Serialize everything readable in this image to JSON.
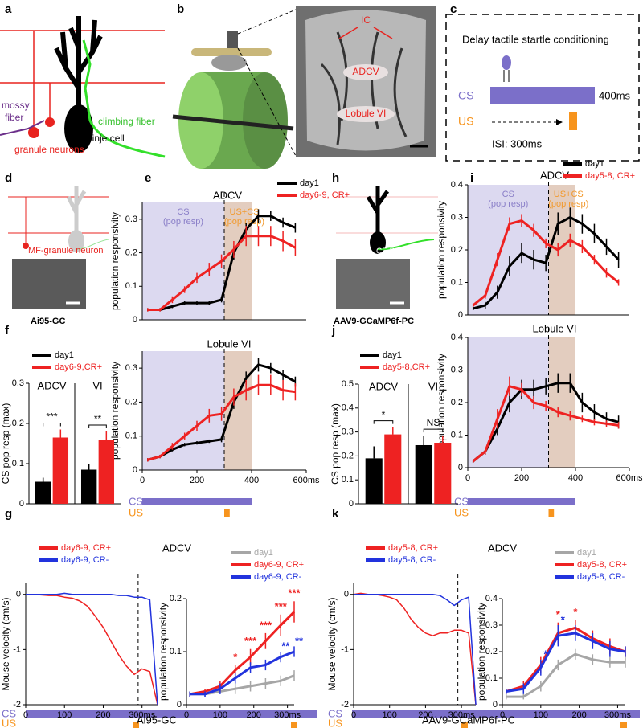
{
  "panel_labels": [
    "a",
    "b",
    "c",
    "d",
    "e",
    "f",
    "g",
    "h",
    "i",
    "j",
    "k"
  ],
  "diagram_a": {
    "mossy_fiber": [
      "mossy",
      "fiber"
    ],
    "granule_neurons": "granule neurons",
    "purkinje_cell": "Purkinje cell",
    "climbing_fiber": "climbing fiber"
  },
  "diagram_b": {
    "labels": [
      "IC",
      "ADCV",
      "Lobule VI"
    ]
  },
  "diagram_c": {
    "title": "Delay tactile startle conditioning",
    "cs_duration": "400ms",
    "isi": "ISI: 300ms"
  },
  "diagram_d": {
    "label": "MF-granule neuron",
    "caption": "Ai95-GC"
  },
  "diagram_h": {
    "label": "CF-PC",
    "caption": "AAV9-GCaMP6f-PC"
  },
  "timeline": {
    "cs": "CS",
    "us": "US"
  },
  "captions": {
    "g": "Ai95-GC",
    "k": "AAV9-GCaMP6f-PC"
  },
  "chart_data": [
    {
      "type": "line",
      "title": "ADCV",
      "y_label": "population responsivity",
      "x": [
        20,
        65,
        110,
        155,
        200,
        245,
        290,
        335,
        380,
        425,
        470,
        515,
        560
      ],
      "xlim": [
        0,
        600
      ],
      "ylim": [
        0,
        0.35
      ],
      "yticks": [
        0,
        0.1,
        0.2,
        0.3
      ],
      "vline": 300,
      "regions": [
        {
          "span": [
            0,
            300
          ],
          "color": "#dcd9f0",
          "label": [
            "CS",
            "(pop resp)"
          ],
          "label_color": "#8a7fc8"
        },
        {
          "span": [
            300,
            400
          ],
          "color": "#e3cdbf",
          "label": [
            "US+CS",
            "(pop resp)"
          ],
          "label_color": "#f29a2e"
        }
      ],
      "legend": "above-right",
      "series": [
        {
          "name": "day1",
          "color": "#000000",
          "values": [
            0.03,
            0.03,
            0.04,
            0.05,
            0.05,
            0.05,
            0.06,
            0.2,
            0.27,
            0.31,
            0.31,
            0.29,
            0.275
          ],
          "errors": [
            0.005,
            0.005,
            0.005,
            0.005,
            0.005,
            0.005,
            0.008,
            0.02,
            0.02,
            0.02,
            0.015,
            0.015,
            0.015
          ]
        },
        {
          "name": "day6-9, CR+",
          "color": "#ee2222",
          "values": [
            0.03,
            0.03,
            0.06,
            0.09,
            0.125,
            0.15,
            0.175,
            0.21,
            0.25,
            0.25,
            0.25,
            0.235,
            0.215
          ],
          "errors": [
            0.005,
            0.005,
            0.01,
            0.01,
            0.015,
            0.02,
            0.02,
            0.025,
            0.03,
            0.03,
            0.03,
            0.03,
            0.025
          ]
        }
      ]
    },
    {
      "type": "line",
      "title": "Lobule VI",
      "y_label": "population responsivity",
      "x": [
        20,
        65,
        110,
        155,
        200,
        245,
        290,
        335,
        380,
        425,
        470,
        515,
        560
      ],
      "xlim": [
        0,
        600
      ],
      "ylim": [
        0,
        0.35
      ],
      "yticks": [
        0,
        0.1,
        0.2,
        0.3
      ],
      "xticks": [
        0,
        200,
        400,
        {
          "value": 600,
          "label": "600ms"
        }
      ],
      "vline": 300,
      "regions": [
        {
          "span": [
            0,
            300
          ],
          "color": "#dcd9f0"
        },
        {
          "span": [
            300,
            400
          ],
          "color": "#e3cdbf"
        }
      ],
      "cs_span": [
        0,
        400
      ],
      "us_span": [
        300,
        320
      ],
      "cs_color": "#7b6fc9",
      "us_color": "#f7941d",
      "series": [
        {
          "color": "#000000",
          "values": [
            0.03,
            0.04,
            0.06,
            0.075,
            0.08,
            0.085,
            0.09,
            0.2,
            0.27,
            0.31,
            0.3,
            0.28,
            0.26
          ],
          "errors": [
            0.005,
            0.005,
            0.005,
            0.005,
            0.005,
            0.005,
            0.008,
            0.02,
            0.02,
            0.02,
            0.015,
            0.015,
            0.015
          ]
        },
        {
          "color": "#ee2222",
          "values": [
            0.03,
            0.04,
            0.07,
            0.1,
            0.13,
            0.16,
            0.165,
            0.215,
            0.235,
            0.25,
            0.25,
            0.235,
            0.23
          ],
          "errors": [
            0.005,
            0.005,
            0.01,
            0.01,
            0.015,
            0.02,
            0.02,
            0.025,
            0.03,
            0.03,
            0.03,
            0.03,
            0.025
          ]
        }
      ]
    },
    {
      "type": "line",
      "title": "ADCV",
      "y_label": "population responsivity",
      "x": [
        20,
        65,
        110,
        155,
        200,
        245,
        290,
        335,
        380,
        425,
        470,
        515,
        560
      ],
      "xlim": [
        0,
        600
      ],
      "ylim": [
        0,
        0.4
      ],
      "yticks": [
        0,
        0.1,
        0.2,
        0.3,
        0.4
      ],
      "vline": 300,
      "regions": [
        {
          "span": [
            0,
            300
          ],
          "color": "#dcd9f0",
          "label": [
            "CS",
            "(pop resp)"
          ],
          "label_color": "#8a7fc8"
        },
        {
          "span": [
            300,
            400
          ],
          "color": "#e3cdbf",
          "label": [
            "US+CS",
            "(pop resp)"
          ],
          "label_color": "#f29a2e"
        }
      ],
      "legend": "above-right",
      "series": [
        {
          "name": "day1",
          "color": "#000000",
          "values": [
            0.02,
            0.03,
            0.07,
            0.15,
            0.19,
            0.17,
            0.16,
            0.28,
            0.3,
            0.28,
            0.25,
            0.21,
            0.17
          ],
          "errors": [
            0.005,
            0.01,
            0.02,
            0.03,
            0.03,
            0.03,
            0.025,
            0.035,
            0.03,
            0.03,
            0.03,
            0.025,
            0.025
          ]
        },
        {
          "name": "day5-8, CR+",
          "color": "#ee2222",
          "values": [
            0.03,
            0.06,
            0.17,
            0.28,
            0.29,
            0.26,
            0.22,
            0.2,
            0.23,
            0.21,
            0.17,
            0.13,
            0.1
          ],
          "errors": [
            0.005,
            0.01,
            0.02,
            0.02,
            0.02,
            0.02,
            0.015,
            0.02,
            0.02,
            0.02,
            0.015,
            0.015,
            0.01
          ]
        }
      ]
    },
    {
      "type": "line",
      "title": "Lobule VI",
      "y_label": "population responsivity",
      "x": [
        20,
        65,
        110,
        155,
        200,
        245,
        290,
        335,
        380,
        425,
        470,
        515,
        560
      ],
      "xlim": [
        0,
        600
      ],
      "ylim": [
        0,
        0.4
      ],
      "yticks": [
        0,
        0.1,
        0.2,
        0.3,
        0.4
      ],
      "xticks": [
        0,
        200,
        400,
        {
          "value": 600,
          "label": "600ms"
        }
      ],
      "vline": 300,
      "regions": [
        {
          "span": [
            0,
            300
          ],
          "color": "#dcd9f0"
        },
        {
          "span": [
            300,
            400
          ],
          "color": "#e3cdbf"
        }
      ],
      "cs_span": [
        0,
        400
      ],
      "us_span": [
        300,
        320
      ],
      "cs_color": "#7b6fc9",
      "us_color": "#f7941d",
      "series": [
        {
          "color": "#000000",
          "values": [
            0.02,
            0.05,
            0.12,
            0.2,
            0.24,
            0.24,
            0.25,
            0.26,
            0.26,
            0.2,
            0.17,
            0.15,
            0.14
          ],
          "errors": [
            0.005,
            0.01,
            0.02,
            0.03,
            0.03,
            0.03,
            0.025,
            0.03,
            0.03,
            0.03,
            0.025,
            0.02,
            0.02
          ]
        },
        {
          "color": "#ee2222",
          "values": [
            0.02,
            0.05,
            0.15,
            0.25,
            0.24,
            0.2,
            0.19,
            0.17,
            0.16,
            0.15,
            0.14,
            0.135,
            0.13
          ],
          "errors": [
            0.005,
            0.01,
            0.03,
            0.03,
            0.02,
            0.02,
            0.015,
            0.015,
            0.015,
            0.01,
            0.01,
            0.01,
            0.01
          ]
        }
      ]
    },
    {
      "type": "bar",
      "y_label": "CS pop resp (max)",
      "categories": [
        "ADCV",
        "VI"
      ],
      "ylim": [
        0,
        0.3
      ],
      "yticks": [
        0,
        0.1,
        0.2,
        0.3
      ],
      "legend": "above-left",
      "significance": [
        "***",
        "**"
      ],
      "series": [
        {
          "name": "day1",
          "color": "#000000",
          "values": [
            0.055,
            0.085
          ],
          "errors": [
            0.01,
            0.015
          ]
        },
        {
          "name": "day6-9,CR+",
          "color": "#ee2222",
          "values": [
            0.165,
            0.16
          ],
          "errors": [
            0.02,
            0.02
          ]
        }
      ]
    },
    {
      "type": "bar",
      "y_label": "CS pop resp (max)",
      "categories": [
        "ADCV",
        "VI"
      ],
      "ylim": [
        0,
        0.5
      ],
      "yticks": [
        0,
        0.1,
        0.2,
        0.3,
        0.4,
        0.5
      ],
      "legend": "above-left",
      "significance": [
        "*",
        "NS"
      ],
      "series": [
        {
          "name": "day1",
          "color": "#000000",
          "values": [
            0.19,
            0.245
          ],
          "errors": [
            0.05,
            0.04
          ]
        },
        {
          "name": "day5-8,CR+",
          "color": "#ee2222",
          "values": [
            0.29,
            0.255
          ],
          "errors": [
            0.03,
            0.03
          ]
        }
      ]
    },
    {
      "type": "line",
      "title": "ADCV",
      "y_label": "Mouse velocity (cm/s)",
      "x": [
        0,
        20,
        40,
        60,
        80,
        100,
        120,
        140,
        160,
        180,
        200,
        220,
        240,
        260,
        280,
        300,
        320,
        340
      ],
      "xlim": [
        0,
        340
      ],
      "ylim": [
        -2,
        0.2
      ],
      "yticks": [
        -2,
        -1,
        0
      ],
      "xticks": [
        0,
        100,
        200,
        {
          "value": 300,
          "label": "300ms"
        }
      ],
      "vline": 290,
      "legend": "top-left",
      "thin": true,
      "series": [
        {
          "name": "day6-9, CR+",
          "color": "#ee2222",
          "values": [
            0,
            0,
            -0.01,
            -0.02,
            -0.02,
            -0.05,
            -0.07,
            -0.12,
            -0.22,
            -0.4,
            -0.6,
            -0.85,
            -1.1,
            -1.3,
            -1.45,
            -1.35,
            -1.4,
            -2
          ]
        },
        {
          "name": "day6-9, CR-",
          "color": "#2233dd",
          "values": [
            0,
            0,
            0,
            0,
            0,
            0.02,
            0,
            0,
            0,
            0,
            0,
            0,
            -0.02,
            -0.02,
            -0.05,
            -0.05,
            -0.1,
            -2
          ]
        }
      ]
    },
    {
      "type": "line",
      "y_label": "population responsivity",
      "x": [
        10,
        55,
        100,
        145,
        190,
        235,
        280,
        320
      ],
      "xlim": [
        0,
        320
      ],
      "ylim": [
        0,
        0.2
      ],
      "yticks": [
        0,
        0.1,
        0.2
      ],
      "xticks": [
        0,
        100,
        200,
        {
          "value": 300,
          "label": "300ms"
        }
      ],
      "legend": "above-right",
      "series": [
        {
          "name": "day1",
          "color": "#a6a6a6",
          "values": [
            0.02,
            0.02,
            0.025,
            0.03,
            0.035,
            0.04,
            0.045,
            0.055
          ],
          "errors": [
            0.005,
            0.005,
            0.005,
            0.01,
            0.01,
            0.01,
            0.01,
            0.01
          ]
        },
        {
          "name": "day6-9, CR+",
          "color": "#ee2222",
          "values": [
            0.02,
            0.025,
            0.035,
            0.065,
            0.09,
            0.12,
            0.15,
            0.175
          ],
          "errors": [
            0.005,
            0.005,
            0.01,
            0.01,
            0.015,
            0.015,
            0.02,
            0.02
          ],
          "significance": [
            null,
            null,
            null,
            "*",
            "***",
            "***",
            "***",
            "***"
          ]
        },
        {
          "name": "day6-9, CR-",
          "color": "#2233dd",
          "values": [
            0.02,
            0.02,
            0.03,
            0.05,
            0.07,
            0.075,
            0.09,
            0.1
          ],
          "errors": [
            0.005,
            0.005,
            0.01,
            0.01,
            0.01,
            0.01,
            0.01,
            0.01
          ],
          "significance": [
            null,
            null,
            null,
            null,
            null,
            null,
            "**",
            "**"
          ]
        }
      ]
    },
    {
      "type": "line",
      "title": "ADCV",
      "y_label": "Mouse velocity (cm/s)",
      "x": [
        0,
        20,
        40,
        60,
        80,
        100,
        120,
        140,
        160,
        180,
        200,
        220,
        240,
        260,
        280,
        300,
        320,
        340
      ],
      "xlim": [
        0,
        340
      ],
      "ylim": [
        -2,
        0.2
      ],
      "yticks": [
        -2,
        -1,
        0
      ],
      "xticks": [
        0,
        100,
        200,
        {
          "value": 300,
          "label": "300ms"
        }
      ],
      "vline": 290,
      "legend": "top-left",
      "thin": true,
      "series": [
        {
          "name": "day5-8, CR+",
          "color": "#ee2222",
          "values": [
            0,
            0.02,
            0,
            0,
            -0.02,
            -0.05,
            -0.1,
            -0.25,
            -0.45,
            -0.6,
            -0.7,
            -0.75,
            -0.7,
            -0.7,
            -0.65,
            -0.65,
            -0.7,
            -2
          ]
        },
        {
          "name": "day5-8, CR-",
          "color": "#2233dd",
          "values": [
            0,
            0,
            0,
            0,
            0,
            0,
            0,
            0,
            0,
            0,
            0,
            0,
            -0.02,
            -0.1,
            -0.2,
            -0.1,
            -0.05,
            -2
          ]
        }
      ]
    },
    {
      "type": "line",
      "y_label": "population responsivity",
      "x": [
        10,
        55,
        100,
        145,
        190,
        235,
        280,
        320
      ],
      "xlim": [
        0,
        320
      ],
      "ylim": [
        0,
        0.4
      ],
      "yticks": [
        0,
        0.1,
        0.2,
        0.3,
        0.4
      ],
      "xticks": [
        0,
        100,
        200,
        {
          "value": 300,
          "label": "300ms"
        }
      ],
      "legend": "above-right",
      "series": [
        {
          "name": "day1",
          "color": "#a6a6a6",
          "values": [
            0.03,
            0.03,
            0.07,
            0.15,
            0.19,
            0.17,
            0.16,
            0.16
          ],
          "errors": [
            0.01,
            0.01,
            0.02,
            0.02,
            0.02,
            0.02,
            0.02,
            0.02
          ]
        },
        {
          "name": "day5-8, CR+",
          "color": "#ee2222",
          "values": [
            0.05,
            0.07,
            0.15,
            0.27,
            0.29,
            0.25,
            0.22,
            0.2
          ],
          "errors": [
            0.01,
            0.02,
            0.03,
            0.04,
            0.03,
            0.03,
            0.03,
            0.02
          ],
          "significance": [
            null,
            null,
            null,
            "*",
            "*",
            null,
            null,
            null
          ]
        },
        {
          "name": "day5-8, CR-",
          "color": "#2233dd",
          "values": [
            0.05,
            0.06,
            0.14,
            0.26,
            0.27,
            0.24,
            0.21,
            0.2
          ],
          "errors": [
            0.01,
            0.02,
            0.03,
            0.04,
            0.03,
            0.03,
            0.03,
            0.02
          ],
          "significance": [
            null,
            null,
            "*",
            "*",
            null,
            null,
            null,
            null
          ]
        }
      ]
    }
  ]
}
